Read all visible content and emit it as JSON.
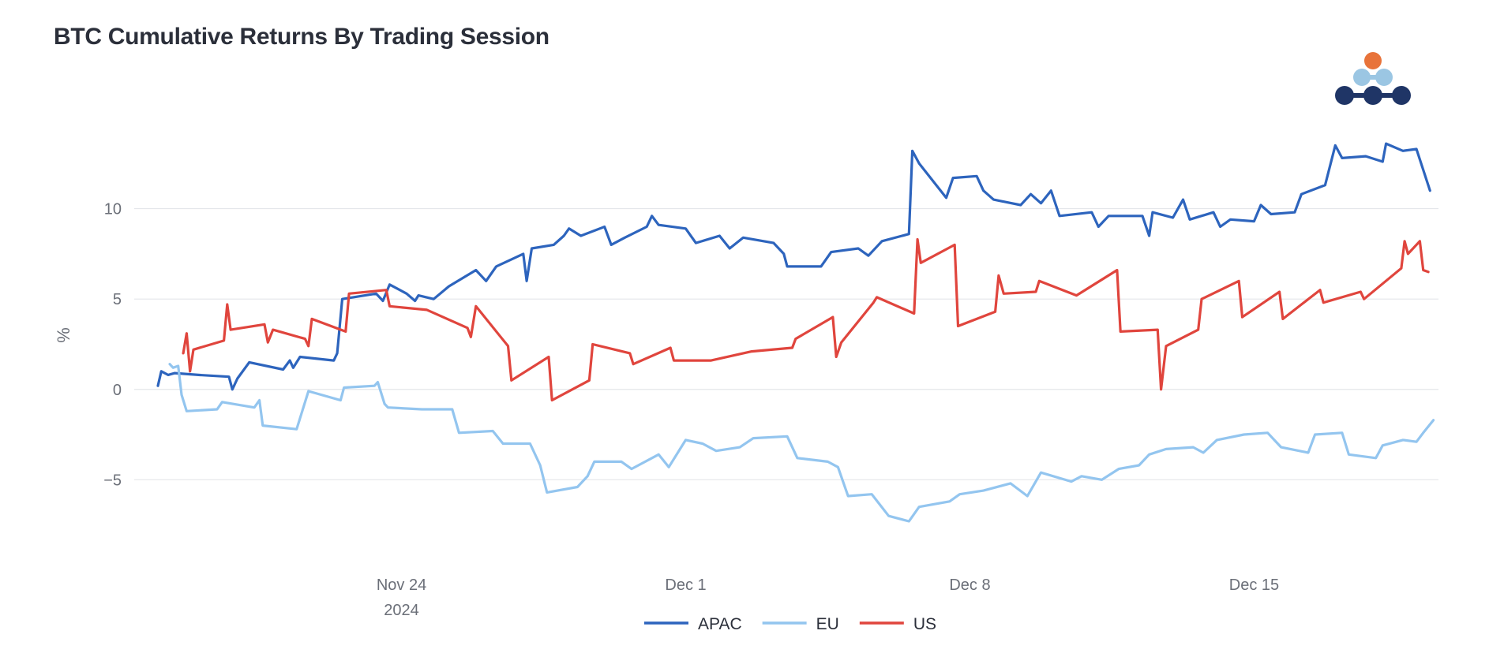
{
  "chart_data": {
    "type": "line",
    "title": "BTC Cumulative Returns By Trading Session",
    "ylabel": "%",
    "xlabel": "",
    "x_axis": "date",
    "xlim": [
      "2024-11-17T10:00",
      "2024-12-19T13:00"
    ],
    "ylim": [
      -9,
      15
    ],
    "y_ticks": [
      -5,
      0,
      5,
      10
    ],
    "y_tick_labels": [
      "−5",
      "0",
      "5",
      "10"
    ],
    "x_ticks": [
      {
        "date": "2024-11-24",
        "label": "Nov 24",
        "sublabel": "2024"
      },
      {
        "date": "2024-12-01",
        "label": "Dec 1",
        "sublabel": ""
      },
      {
        "date": "2024-12-08",
        "label": "Dec 8",
        "sublabel": ""
      },
      {
        "date": "2024-12-15",
        "label": "Dec 15",
        "sublabel": ""
      }
    ],
    "grid": "horizontal",
    "legend_position": "bottom-center",
    "series": [
      {
        "name": "APAC",
        "color": "#2d64bd",
        "points": [
          [
            "2024-11-18T00:00",
            0.2
          ],
          [
            "2024-11-18T02:00",
            1.0
          ],
          [
            "2024-11-18T06:00",
            0.8
          ],
          [
            "2024-11-18T10:00",
            0.9
          ],
          [
            "2024-11-19T00:00",
            0.8
          ],
          [
            "2024-11-19T18:00",
            0.7
          ],
          [
            "2024-11-19T20:00",
            0.0
          ],
          [
            "2024-11-19T23:00",
            0.6
          ],
          [
            "2024-11-20T06:00",
            1.5
          ],
          [
            "2024-11-21T02:00",
            1.1
          ],
          [
            "2024-11-21T06:00",
            1.6
          ],
          [
            "2024-11-21T08:00",
            1.2
          ],
          [
            "2024-11-21T12:00",
            1.8
          ],
          [
            "2024-11-22T08:00",
            1.6
          ],
          [
            "2024-11-22T10:00",
            2.0
          ],
          [
            "2024-11-22T13:00",
            5.0
          ],
          [
            "2024-11-23T09:00",
            5.3
          ],
          [
            "2024-11-23T13:00",
            4.9
          ],
          [
            "2024-11-23T17:00",
            5.8
          ],
          [
            "2024-11-24T03:00",
            5.3
          ],
          [
            "2024-11-24T08:00",
            4.9
          ],
          [
            "2024-11-24T10:00",
            5.2
          ],
          [
            "2024-11-24T19:00",
            5.0
          ],
          [
            "2024-11-25T04:00",
            5.7
          ],
          [
            "2024-11-25T20:00",
            6.6
          ],
          [
            "2024-11-26T02:00",
            6.0
          ],
          [
            "2024-11-26T08:00",
            6.8
          ],
          [
            "2024-11-27T00:00",
            7.5
          ],
          [
            "2024-11-27T02:00",
            6.0
          ],
          [
            "2024-11-27T05:00",
            7.8
          ],
          [
            "2024-11-27T18:00",
            8.0
          ],
          [
            "2024-11-28T00:00",
            8.5
          ],
          [
            "2024-11-28T03:00",
            8.9
          ],
          [
            "2024-11-28T10:00",
            8.5
          ],
          [
            "2024-11-29T00:00",
            9.0
          ],
          [
            "2024-11-29T04:00",
            8.0
          ],
          [
            "2024-11-29T12:00",
            8.4
          ],
          [
            "2024-11-30T01:00",
            9.0
          ],
          [
            "2024-11-30T04:00",
            9.6
          ],
          [
            "2024-11-30T08:00",
            9.1
          ],
          [
            "2024-12-01T00:00",
            8.9
          ],
          [
            "2024-12-01T06:00",
            8.1
          ],
          [
            "2024-12-01T20:00",
            8.5
          ],
          [
            "2024-12-02T02:00",
            7.8
          ],
          [
            "2024-12-02T10:00",
            8.4
          ],
          [
            "2024-12-03T04:00",
            8.1
          ],
          [
            "2024-12-03T10:00",
            7.5
          ],
          [
            "2024-12-03T12:00",
            6.8
          ],
          [
            "2024-12-04T08:00",
            6.8
          ],
          [
            "2024-12-04T14:00",
            7.6
          ],
          [
            "2024-12-05T06:00",
            7.8
          ],
          [
            "2024-12-05T12:00",
            7.4
          ],
          [
            "2024-12-05T20:00",
            8.2
          ],
          [
            "2024-12-06T12:00",
            8.6
          ],
          [
            "2024-12-06T14:00",
            13.2
          ],
          [
            "2024-12-06T18:00",
            12.5
          ],
          [
            "2024-12-07T10:00",
            10.6
          ],
          [
            "2024-12-07T14:00",
            11.7
          ],
          [
            "2024-12-08T04:00",
            11.8
          ],
          [
            "2024-12-08T08:00",
            11.0
          ],
          [
            "2024-12-08T14:00",
            10.5
          ],
          [
            "2024-12-09T06:00",
            10.2
          ],
          [
            "2024-12-09T12:00",
            10.8
          ],
          [
            "2024-12-09T18:00",
            10.3
          ],
          [
            "2024-12-10T00:00",
            11.0
          ],
          [
            "2024-12-10T05:00",
            9.6
          ],
          [
            "2024-12-11T00:00",
            9.8
          ],
          [
            "2024-12-11T04:00",
            9.0
          ],
          [
            "2024-12-11T10:00",
            9.6
          ],
          [
            "2024-12-12T06:00",
            9.6
          ],
          [
            "2024-12-12T10:00",
            8.5
          ],
          [
            "2024-12-12T12:00",
            9.8
          ],
          [
            "2024-12-13T00:00",
            9.5
          ],
          [
            "2024-12-13T06:00",
            10.5
          ],
          [
            "2024-12-13T10:00",
            9.4
          ],
          [
            "2024-12-14T00:00",
            9.8
          ],
          [
            "2024-12-14T04:00",
            9.0
          ],
          [
            "2024-12-14T10:00",
            9.4
          ],
          [
            "2024-12-15T00:00",
            9.3
          ],
          [
            "2024-12-15T04:00",
            10.2
          ],
          [
            "2024-12-15T10:00",
            9.7
          ],
          [
            "2024-12-16T00:00",
            9.8
          ],
          [
            "2024-12-16T04:00",
            10.8
          ],
          [
            "2024-12-16T18:00",
            11.3
          ],
          [
            "2024-12-17T00:00",
            13.5
          ],
          [
            "2024-12-17T04:00",
            12.8
          ],
          [
            "2024-12-17T18:00",
            12.9
          ],
          [
            "2024-12-18T04:00",
            12.6
          ],
          [
            "2024-12-18T06:00",
            13.6
          ],
          [
            "2024-12-18T16:00",
            13.2
          ],
          [
            "2024-12-19T00:00",
            13.3
          ],
          [
            "2024-12-19T08:00",
            11.0
          ]
        ]
      },
      {
        "name": "EU",
        "color": "#93c5ef",
        "points": [
          [
            "2024-11-18T07:00",
            1.4
          ],
          [
            "2024-11-18T09:00",
            1.2
          ],
          [
            "2024-11-18T12:00",
            1.3
          ],
          [
            "2024-11-18T14:00",
            -0.3
          ],
          [
            "2024-11-18T17:00",
            -1.2
          ],
          [
            "2024-11-19T11:00",
            -1.1
          ],
          [
            "2024-11-19T14:00",
            -0.7
          ],
          [
            "2024-11-20T09:00",
            -1.0
          ],
          [
            "2024-11-20T12:00",
            -0.6
          ],
          [
            "2024-11-20T14:00",
            -2.0
          ],
          [
            "2024-11-21T10:00",
            -2.2
          ],
          [
            "2024-11-21T17:00",
            -0.1
          ],
          [
            "2024-11-22T12:00",
            -0.6
          ],
          [
            "2024-11-22T14:00",
            0.1
          ],
          [
            "2024-11-23T08:00",
            0.2
          ],
          [
            "2024-11-23T10:00",
            0.4
          ],
          [
            "2024-11-23T14:00",
            -0.8
          ],
          [
            "2024-11-23T16:00",
            -1.0
          ],
          [
            "2024-11-24T12:00",
            -1.1
          ],
          [
            "2024-11-25T06:00",
            -1.1
          ],
          [
            "2024-11-25T10:00",
            -2.4
          ],
          [
            "2024-11-26T06:00",
            -2.3
          ],
          [
            "2024-11-26T12:00",
            -3.0
          ],
          [
            "2024-11-27T04:00",
            -3.0
          ],
          [
            "2024-11-27T10:00",
            -4.2
          ],
          [
            "2024-11-27T14:00",
            -5.7
          ],
          [
            "2024-11-28T08:00",
            -5.4
          ],
          [
            "2024-11-28T14:00",
            -4.8
          ],
          [
            "2024-11-28T18:00",
            -4.0
          ],
          [
            "2024-11-29T10:00",
            -4.0
          ],
          [
            "2024-11-29T16:00",
            -4.4
          ],
          [
            "2024-11-30T08:00",
            -3.6
          ],
          [
            "2024-11-30T14:00",
            -4.3
          ],
          [
            "2024-12-01T00:00",
            -2.8
          ],
          [
            "2024-12-01T10:00",
            -3.0
          ],
          [
            "2024-12-01T18:00",
            -3.4
          ],
          [
            "2024-12-02T08:00",
            -3.2
          ],
          [
            "2024-12-02T16:00",
            -2.7
          ],
          [
            "2024-12-03T12:00",
            -2.6
          ],
          [
            "2024-12-03T18:00",
            -3.8
          ],
          [
            "2024-12-04T12:00",
            -4.0
          ],
          [
            "2024-12-04T18:00",
            -4.3
          ],
          [
            "2024-12-05T00:00",
            -5.9
          ],
          [
            "2024-12-05T14:00",
            -5.8
          ],
          [
            "2024-12-06T00:00",
            -7.0
          ],
          [
            "2024-12-06T12:00",
            -7.3
          ],
          [
            "2024-12-06T18:00",
            -6.5
          ],
          [
            "2024-12-07T12:00",
            -6.2
          ],
          [
            "2024-12-07T18:00",
            -5.8
          ],
          [
            "2024-12-08T08:00",
            -5.6
          ],
          [
            "2024-12-09T00:00",
            -5.2
          ],
          [
            "2024-12-09T10:00",
            -5.9
          ],
          [
            "2024-12-09T18:00",
            -4.6
          ],
          [
            "2024-12-10T12:00",
            -5.1
          ],
          [
            "2024-12-10T18:00",
            -4.8
          ],
          [
            "2024-12-11T06:00",
            -5.0
          ],
          [
            "2024-12-11T16:00",
            -4.4
          ],
          [
            "2024-12-12T04:00",
            -4.2
          ],
          [
            "2024-12-12T10:00",
            -3.6
          ],
          [
            "2024-12-12T20:00",
            -3.3
          ],
          [
            "2024-12-13T12:00",
            -3.2
          ],
          [
            "2024-12-13T18:00",
            -3.5
          ],
          [
            "2024-12-14T02:00",
            -2.8
          ],
          [
            "2024-12-14T18:00",
            -2.5
          ],
          [
            "2024-12-15T08:00",
            -2.4
          ],
          [
            "2024-12-15T16:00",
            -3.2
          ],
          [
            "2024-12-16T08:00",
            -3.5
          ],
          [
            "2024-12-16T12:00",
            -2.5
          ],
          [
            "2024-12-17T04:00",
            -2.4
          ],
          [
            "2024-12-17T08:00",
            -3.6
          ],
          [
            "2024-12-18T00:00",
            -3.8
          ],
          [
            "2024-12-18T04:00",
            -3.1
          ],
          [
            "2024-12-18T16:00",
            -2.8
          ],
          [
            "2024-12-19T00:00",
            -2.9
          ],
          [
            "2024-12-19T04:00",
            -2.4
          ],
          [
            "2024-12-19T10:00",
            -1.7
          ]
        ]
      },
      {
        "name": "US",
        "color": "#e0453d",
        "points": [
          [
            "2024-11-18T15:00",
            2.0
          ],
          [
            "2024-11-18T17:00",
            3.1
          ],
          [
            "2024-11-18T19:00",
            1.0
          ],
          [
            "2024-11-18T21:00",
            2.2
          ],
          [
            "2024-11-19T15:00",
            2.7
          ],
          [
            "2024-11-19T17:00",
            4.7
          ],
          [
            "2024-11-19T19:00",
            3.3
          ],
          [
            "2024-11-20T15:00",
            3.6
          ],
          [
            "2024-11-20T17:00",
            2.6
          ],
          [
            "2024-11-20T20:00",
            3.3
          ],
          [
            "2024-11-21T15:00",
            2.8
          ],
          [
            "2024-11-21T17:00",
            2.4
          ],
          [
            "2024-11-21T19:00",
            3.9
          ],
          [
            "2024-11-22T15:00",
            3.2
          ],
          [
            "2024-11-22T17:00",
            5.3
          ],
          [
            "2024-11-23T15:00",
            5.5
          ],
          [
            "2024-11-23T17:00",
            4.6
          ],
          [
            "2024-11-24T15:00",
            4.4
          ],
          [
            "2024-11-25T15:00",
            3.4
          ],
          [
            "2024-11-25T17:00",
            2.9
          ],
          [
            "2024-11-25T20:00",
            4.6
          ],
          [
            "2024-11-26T15:00",
            2.4
          ],
          [
            "2024-11-26T17:00",
            0.5
          ],
          [
            "2024-11-27T15:00",
            1.8
          ],
          [
            "2024-11-27T17:00",
            -0.6
          ],
          [
            "2024-11-28T15:00",
            0.5
          ],
          [
            "2024-11-28T17:00",
            2.5
          ],
          [
            "2024-11-29T15:00",
            2.0
          ],
          [
            "2024-11-29T17:00",
            1.4
          ],
          [
            "2024-11-30T15:00",
            2.3
          ],
          [
            "2024-11-30T17:00",
            1.6
          ],
          [
            "2024-12-01T15:00",
            1.6
          ],
          [
            "2024-12-02T15:00",
            2.1
          ],
          [
            "2024-12-03T15:00",
            2.3
          ],
          [
            "2024-12-03T17:00",
            2.8
          ],
          [
            "2024-12-04T15:00",
            4.0
          ],
          [
            "2024-12-04T17:00",
            1.8
          ],
          [
            "2024-12-04T20:00",
            2.6
          ],
          [
            "2024-12-05T15:00",
            4.8
          ],
          [
            "2024-12-05T17:00",
            5.1
          ],
          [
            "2024-12-06T15:00",
            4.2
          ],
          [
            "2024-12-06T17:00",
            8.3
          ],
          [
            "2024-12-06T19:00",
            7.0
          ],
          [
            "2024-12-07T15:00",
            8.0
          ],
          [
            "2024-12-07T17:00",
            3.5
          ],
          [
            "2024-12-08T15:00",
            4.3
          ],
          [
            "2024-12-08T17:00",
            6.3
          ],
          [
            "2024-12-08T20:00",
            5.3
          ],
          [
            "2024-12-09T15:00",
            5.4
          ],
          [
            "2024-12-09T17:00",
            6.0
          ],
          [
            "2024-12-10T15:00",
            5.2
          ],
          [
            "2024-12-11T15:00",
            6.6
          ],
          [
            "2024-12-11T17:00",
            3.2
          ],
          [
            "2024-12-12T15:00",
            3.3
          ],
          [
            "2024-12-12T17:00",
            0.0
          ],
          [
            "2024-12-12T20:00",
            2.4
          ],
          [
            "2024-12-13T15:00",
            3.3
          ],
          [
            "2024-12-13T17:00",
            5.0
          ],
          [
            "2024-12-14T15:00",
            6.0
          ],
          [
            "2024-12-14T17:00",
            4.0
          ],
          [
            "2024-12-15T15:00",
            5.4
          ],
          [
            "2024-12-15T17:00",
            3.9
          ],
          [
            "2024-12-16T15:00",
            5.5
          ],
          [
            "2024-12-16T17:00",
            4.8
          ],
          [
            "2024-12-17T15:00",
            5.4
          ],
          [
            "2024-12-17T17:00",
            5.0
          ],
          [
            "2024-12-18T15:00",
            6.7
          ],
          [
            "2024-12-18T17:00",
            8.2
          ],
          [
            "2024-12-18T19:00",
            7.5
          ],
          [
            "2024-12-19T02:00",
            8.2
          ],
          [
            "2024-12-19T04:00",
            6.6
          ],
          [
            "2024-12-19T07:00",
            6.5
          ]
        ]
      }
    ]
  }
}
